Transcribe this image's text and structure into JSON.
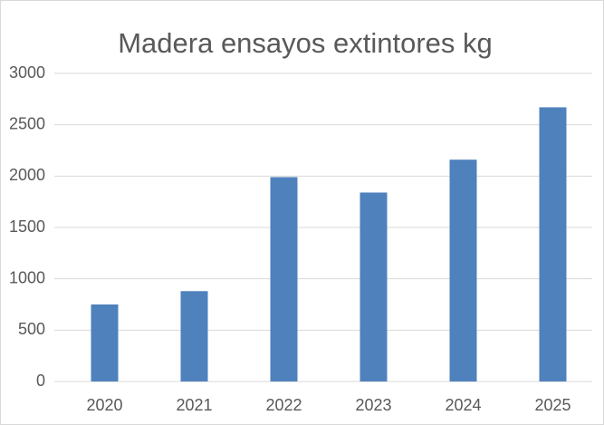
{
  "chart_data": {
    "type": "bar",
    "title": "Madera ensayos extintores kg",
    "categories": [
      "2020",
      "2021",
      "2022",
      "2023",
      "2024",
      "2025"
    ],
    "values": [
      750,
      880,
      1990,
      1840,
      2160,
      2670
    ],
    "color": "#4f81bd",
    "ylim": [
      0,
      3000
    ],
    "yticks": [
      0,
      500,
      1000,
      1500,
      2000,
      2500,
      3000
    ],
    "grid": true
  }
}
